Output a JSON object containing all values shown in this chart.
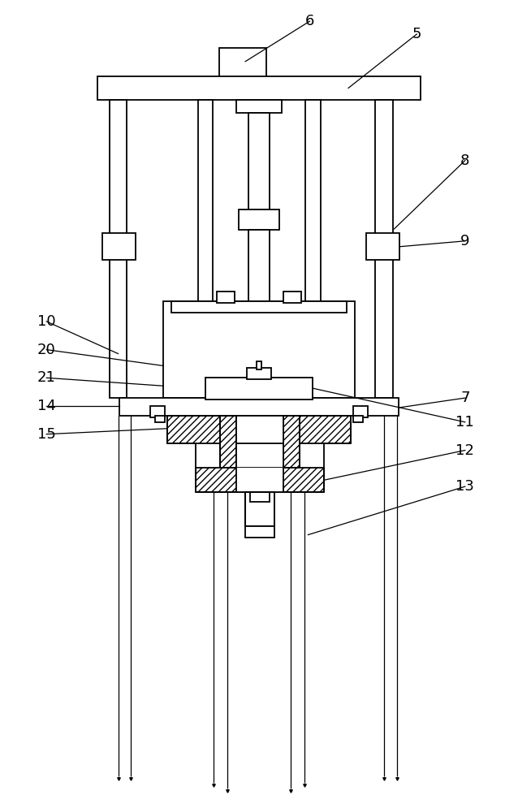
{
  "fig_width": 6.38,
  "fig_height": 10.0,
  "bg_color": "#ffffff",
  "line_color": "#000000"
}
